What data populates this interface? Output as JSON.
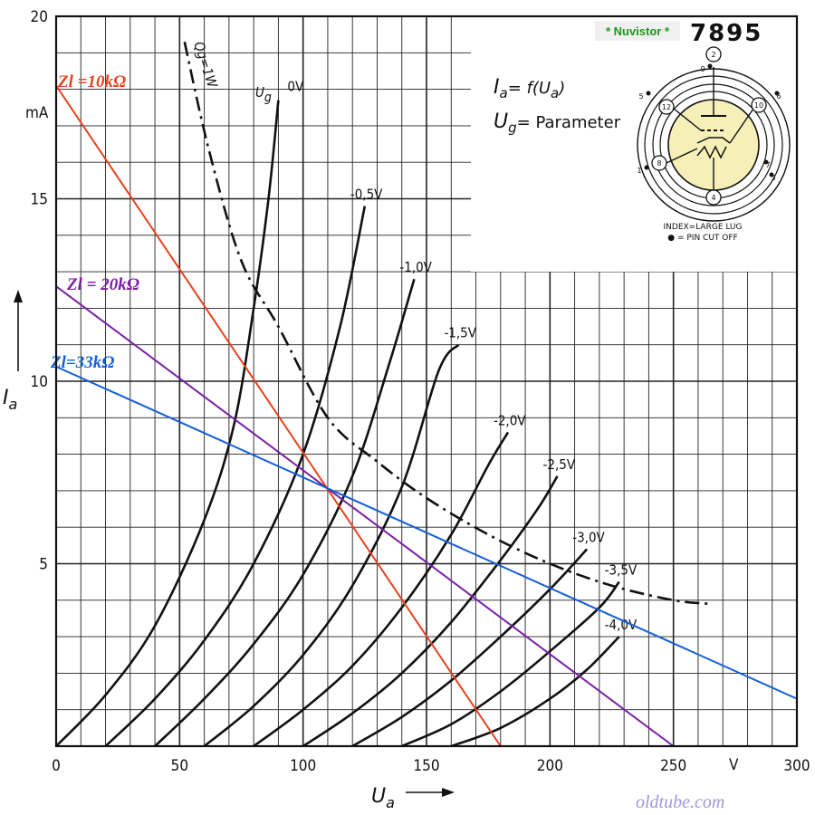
{
  "chart_data": {
    "type": "line",
    "title": "Ia = f(Ua)",
    "subtitle": "Ug = Parameter",
    "xlabel": "Ua",
    "xunit": "V",
    "ylabel": "Ia",
    "yunit": "mA",
    "xlim": [
      0,
      300
    ],
    "ylim": [
      0,
      20
    ],
    "x_ticks": [
      0,
      50,
      100,
      150,
      200,
      250,
      300
    ],
    "y_ticks": [
      5,
      10,
      15,
      20
    ],
    "grid": true,
    "series": [
      {
        "name": "Ug = 0V",
        "label": "0V",
        "points": [
          [
            0,
            0
          ],
          [
            20,
            1.4
          ],
          [
            40,
            3.3
          ],
          [
            60,
            6.2
          ],
          [
            72,
            8.8
          ],
          [
            80,
            12
          ],
          [
            86,
            15
          ],
          [
            90,
            17.7
          ]
        ]
      },
      {
        "name": "-0,5V",
        "label": "-0,5V",
        "points": [
          [
            20,
            0
          ],
          [
            40,
            1.3
          ],
          [
            60,
            2.9
          ],
          [
            80,
            5.0
          ],
          [
            100,
            8.0
          ],
          [
            115,
            11.5
          ],
          [
            125,
            14.8
          ]
        ]
      },
      {
        "name": "-1,0V",
        "label": "-1,0V",
        "points": [
          [
            40,
            0
          ],
          [
            60,
            1.3
          ],
          [
            80,
            2.8
          ],
          [
            100,
            4.7
          ],
          [
            120,
            7.4
          ],
          [
            135,
            10.5
          ],
          [
            145,
            12.8
          ]
        ]
      },
      {
        "name": "-1,5V",
        "label": "-1,5V",
        "points": [
          [
            60,
            0
          ],
          [
            80,
            1.1
          ],
          [
            100,
            2.5
          ],
          [
            120,
            4.4
          ],
          [
            140,
            7.1
          ],
          [
            155,
            10.3
          ],
          [
            163,
            11.0
          ]
        ]
      },
      {
        "name": "-2,0V",
        "label": "-2,0V",
        "points": [
          [
            80,
            0
          ],
          [
            100,
            1.0
          ],
          [
            120,
            2.2
          ],
          [
            140,
            3.8
          ],
          [
            160,
            5.8
          ],
          [
            175,
            7.7
          ],
          [
            183,
            8.6
          ]
        ]
      },
      {
        "name": "-2,5V",
        "label": "-2,5V",
        "points": [
          [
            100,
            0
          ],
          [
            120,
            0.9
          ],
          [
            140,
            2.0
          ],
          [
            160,
            3.4
          ],
          [
            180,
            5.1
          ],
          [
            195,
            6.5
          ],
          [
            203,
            7.4
          ]
        ]
      },
      {
        "name": "-3,0V",
        "label": "-3,0V",
        "points": [
          [
            120,
            0
          ],
          [
            140,
            0.8
          ],
          [
            160,
            1.8
          ],
          [
            180,
            3.0
          ],
          [
            200,
            4.3
          ],
          [
            215,
            5.4
          ]
        ]
      },
      {
        "name": "-3,5V",
        "label": "-3,5V",
        "points": [
          [
            140,
            0
          ],
          [
            160,
            0.6
          ],
          [
            180,
            1.5
          ],
          [
            200,
            2.6
          ],
          [
            220,
            3.8
          ],
          [
            228,
            4.5
          ]
        ]
      },
      {
        "name": "-4,0V",
        "label": "-4,0V",
        "points": [
          [
            160,
            0
          ],
          [
            180,
            0.5
          ],
          [
            200,
            1.3
          ],
          [
            215,
            2.1
          ],
          [
            228,
            3.0
          ]
        ]
      }
    ],
    "dissipation_curve": {
      "label": "Qg=1W",
      "points": [
        [
          52,
          19.3
        ],
        [
          62,
          16.3
        ],
        [
          75,
          13.3
        ],
        [
          90,
          11.5
        ],
        [
          110,
          9.0
        ],
        [
          130,
          7.8
        ],
        [
          150,
          6.8
        ],
        [
          175,
          5.8
        ],
        [
          200,
          5.0
        ],
        [
          225,
          4.4
        ],
        [
          250,
          4.0
        ],
        [
          265,
          3.9
        ]
      ]
    },
    "load_lines": [
      {
        "name": "Zl =10kΩ",
        "label": "Zl =10kΩ",
        "color": "#e8421e",
        "points": [
          [
            0,
            18.1
          ],
          [
            180,
            0
          ]
        ]
      },
      {
        "name": "Zl = 20kΩ",
        "label": "Zl = 20kΩ",
        "color": "#7a1fa6",
        "points": [
          [
            0,
            12.6
          ],
          [
            250,
            0
          ]
        ]
      },
      {
        "name": "Zl=33kΩ",
        "label": "Zl=33kΩ",
        "color": "#1560d6",
        "points": [
          [
            0,
            10.4
          ],
          [
            300,
            1.3
          ]
        ]
      }
    ]
  },
  "formula": {
    "ia_sym": "I",
    "ia_sub": "a",
    "ia_eq": "= f(U",
    "ia_sub2": "a",
    "ia_close": ")",
    "ug_sym": "U",
    "ug_sub": "g",
    "ug_eq": "= Parameter"
  },
  "axis_labels": {
    "y_unit": "mA",
    "x_unit": "V",
    "y_sym": "I",
    "y_sub": "a",
    "x_sym": "U",
    "x_sub": "a",
    "ug0_prefix": "U",
    "ug0_sub": "g"
  },
  "tube": {
    "badge": "* Nuvistor *",
    "number": "7895",
    "note1": "INDEX=LARGE LUG",
    "note2": "● = PIN CUT OFF",
    "pins": [
      "2",
      "9",
      "5",
      "6",
      "12",
      "10",
      "8",
      "1",
      "7",
      "3",
      "4"
    ]
  },
  "credit": "oldtube.com",
  "colors": {
    "load10": "#e8421e",
    "load20": "#7a1fa6",
    "load33": "#1560d6",
    "badge_bg": "#f0f0f0",
    "tube_fill": "#f6f0b8"
  }
}
